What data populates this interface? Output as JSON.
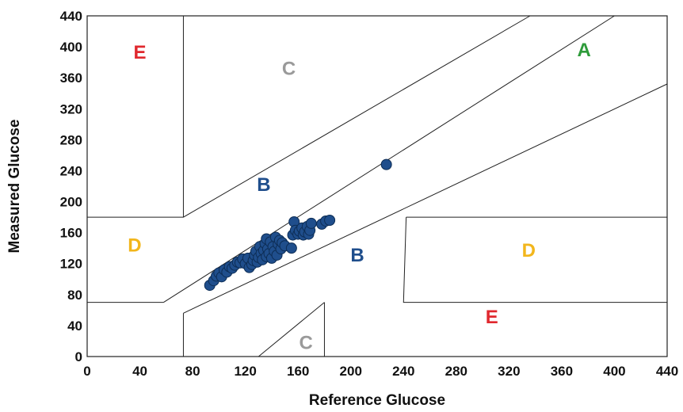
{
  "chart_data": {
    "type": "scatter",
    "title": "",
    "xlabel": "Reference Glucose",
    "ylabel": "Measured Glucose",
    "xlim": [
      0,
      440
    ],
    "ylim": [
      0,
      440
    ],
    "xticks": [
      0,
      40,
      80,
      120,
      160,
      200,
      240,
      280,
      320,
      360,
      400,
      440
    ],
    "yticks": [
      0,
      40,
      80,
      120,
      160,
      200,
      240,
      280,
      320,
      360,
      400,
      440
    ],
    "point_color": "#1f4e8c",
    "zone_colors": {
      "A": "#2e9b3a",
      "B": "#1f4e8c",
      "C": "#9a9a9a",
      "D": "#f2b61c",
      "E": "#e0282e"
    },
    "zone_labels": [
      {
        "text": "E",
        "zone": "E",
        "x": 40,
        "y": 394
      },
      {
        "text": "C",
        "zone": "C",
        "x": 153,
        "y": 373
      },
      {
        "text": "A",
        "zone": "A",
        "x": 377,
        "y": 397
      },
      {
        "text": "B",
        "zone": "B",
        "x": 134,
        "y": 223
      },
      {
        "text": "D",
        "zone": "D",
        "x": 36,
        "y": 145
      },
      {
        "text": "B",
        "zone": "B",
        "x": 205,
        "y": 132
      },
      {
        "text": "D",
        "zone": "D",
        "x": 335,
        "y": 138
      },
      {
        "text": "E",
        "zone": "E",
        "x": 307,
        "y": 52
      },
      {
        "text": "C",
        "zone": "C",
        "x": 166,
        "y": 19
      }
    ],
    "zone_lines": [
      [
        [
          73,
          440
        ],
        [
          73,
          180
        ]
      ],
      [
        [
          0,
          180
        ],
        [
          73,
          180
        ],
        [
          336,
          440
        ]
      ],
      [
        [
          58,
          70
        ],
        [
          400,
          440
        ]
      ],
      [
        [
          0,
          70
        ],
        [
          58,
          70
        ]
      ],
      [
        [
          73,
          56
        ],
        [
          73,
          0
        ]
      ],
      [
        [
          73,
          56
        ],
        [
          440,
          352
        ]
      ],
      [
        [
          242,
          180
        ],
        [
          440,
          180
        ]
      ],
      [
        [
          242,
          180
        ],
        [
          240,
          70
        ],
        [
          440,
          70
        ]
      ],
      [
        [
          180,
          70
        ],
        [
          180,
          0
        ]
      ],
      [
        [
          130,
          0
        ],
        [
          180,
          70
        ]
      ]
    ],
    "points": [
      {
        "x": 93,
        "y": 92
      },
      {
        "x": 96,
        "y": 98
      },
      {
        "x": 98,
        "y": 104
      },
      {
        "x": 100,
        "y": 108
      },
      {
        "x": 102,
        "y": 103
      },
      {
        "x": 104,
        "y": 112
      },
      {
        "x": 106,
        "y": 109
      },
      {
        "x": 108,
        "y": 116
      },
      {
        "x": 110,
        "y": 114
      },
      {
        "x": 112,
        "y": 118
      },
      {
        "x": 114,
        "y": 122
      },
      {
        "x": 116,
        "y": 121
      },
      {
        "x": 118,
        "y": 126
      },
      {
        "x": 120,
        "y": 120
      },
      {
        "x": 122,
        "y": 127
      },
      {
        "x": 123,
        "y": 115
      },
      {
        "x": 125,
        "y": 119
      },
      {
        "x": 126,
        "y": 124
      },
      {
        "x": 127,
        "y": 131
      },
      {
        "x": 128,
        "y": 136
      },
      {
        "x": 129,
        "y": 122
      },
      {
        "x": 130,
        "y": 128
      },
      {
        "x": 131,
        "y": 142
      },
      {
        "x": 132,
        "y": 133
      },
      {
        "x": 133,
        "y": 125
      },
      {
        "x": 134,
        "y": 137
      },
      {
        "x": 135,
        "y": 146
      },
      {
        "x": 136,
        "y": 129
      },
      {
        "x": 136,
        "y": 152
      },
      {
        "x": 137,
        "y": 139
      },
      {
        "x": 138,
        "y": 133
      },
      {
        "x": 139,
        "y": 148
      },
      {
        "x": 140,
        "y": 127
      },
      {
        "x": 141,
        "y": 142
      },
      {
        "x": 142,
        "y": 136
      },
      {
        "x": 143,
        "y": 154
      },
      {
        "x": 144,
        "y": 131
      },
      {
        "x": 145,
        "y": 145
      },
      {
        "x": 146,
        "y": 150
      },
      {
        "x": 147,
        "y": 139
      },
      {
        "x": 148,
        "y": 147
      },
      {
        "x": 150,
        "y": 143
      },
      {
        "x": 155,
        "y": 140
      },
      {
        "x": 156,
        "y": 157
      },
      {
        "x": 157,
        "y": 174
      },
      {
        "x": 158,
        "y": 163
      },
      {
        "x": 160,
        "y": 158
      },
      {
        "x": 161,
        "y": 162
      },
      {
        "x": 163,
        "y": 166
      },
      {
        "x": 164,
        "y": 157
      },
      {
        "x": 165,
        "y": 161
      },
      {
        "x": 167,
        "y": 168
      },
      {
        "x": 168,
        "y": 158
      },
      {
        "x": 169,
        "y": 163
      },
      {
        "x": 170,
        "y": 172
      },
      {
        "x": 178,
        "y": 171
      },
      {
        "x": 181,
        "y": 175
      },
      {
        "x": 184,
        "y": 176
      },
      {
        "x": 227,
        "y": 248
      }
    ]
  }
}
